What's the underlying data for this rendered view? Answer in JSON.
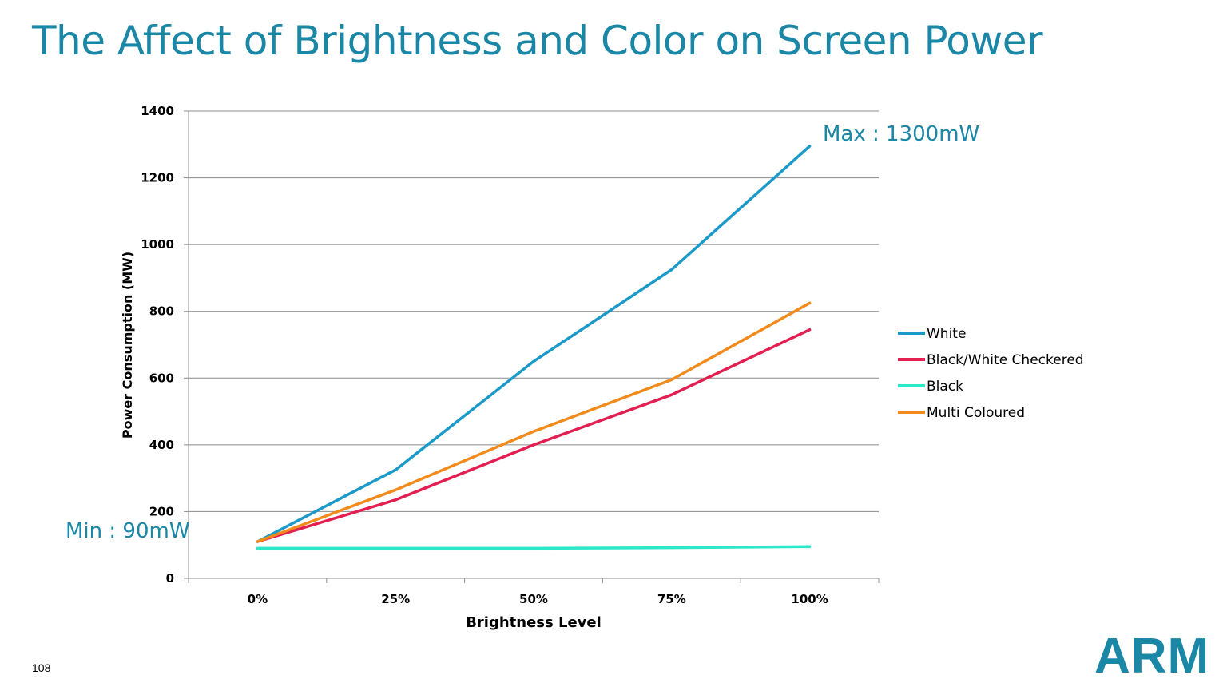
{
  "slide": {
    "title": "The Affect of Brightness and Color on Screen Power",
    "page_number": "108",
    "logo_text": "ARM"
  },
  "chart_data": {
    "type": "line",
    "title": "",
    "xlabel": "Brightness Level",
    "ylabel": "Power Consumption (MW)",
    "categories": [
      "0%",
      "25%",
      "50%",
      "75%",
      "100%"
    ],
    "ylim": [
      0,
      1400
    ],
    "yticks": [
      0,
      200,
      400,
      600,
      800,
      1000,
      1200,
      1400
    ],
    "grid": true,
    "legend_position": "right",
    "series": [
      {
        "name": "White",
        "color": "#1b9ac9",
        "values": [
          110,
          325,
          650,
          925,
          1295
        ]
      },
      {
        "name": "Black/White Checkered",
        "color": "#e31e50",
        "values": [
          110,
          235,
          400,
          550,
          745
        ]
      },
      {
        "name": "Black",
        "color": "#2ae8c8",
        "values": [
          90,
          90,
          90,
          92,
          95
        ]
      },
      {
        "name": "Multi Coloured",
        "color": "#f28b1c",
        "values": [
          110,
          265,
          440,
          595,
          825
        ]
      }
    ],
    "annotations": {
      "max_label": "Max : 1300mW",
      "min_label": "Min : 90mW"
    }
  }
}
